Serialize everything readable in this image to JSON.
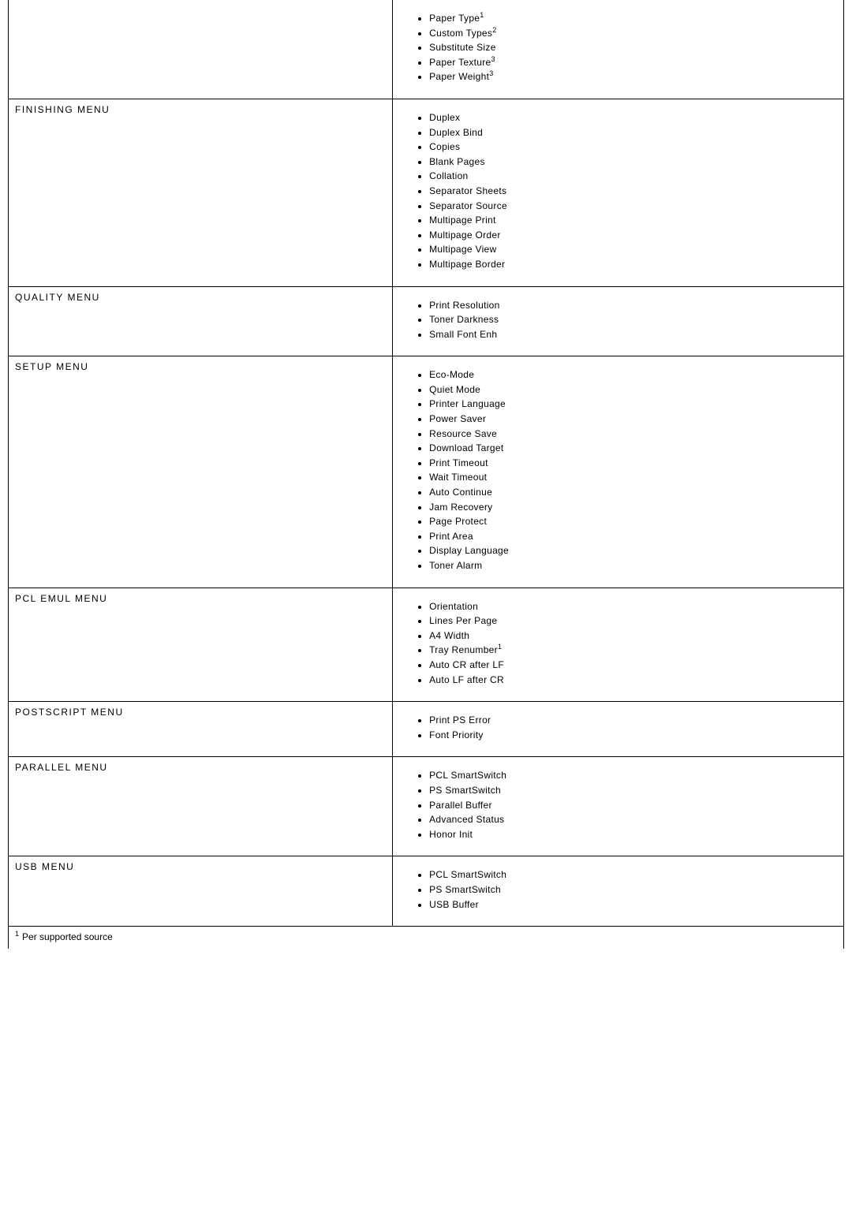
{
  "menus": [
    {
      "name": "",
      "first_row": true,
      "items": [
        {
          "text": "Paper Type",
          "sup": "1"
        },
        {
          "text": "Custom Types",
          "sup": "2"
        },
        {
          "text": "Substitute Size",
          "sup": null
        },
        {
          "text": "Paper Texture",
          "sup": "3"
        },
        {
          "text": "Paper Weight",
          "sup": "3"
        }
      ]
    },
    {
      "name": "FINISHING MENU",
      "items": [
        {
          "text": "Duplex",
          "sup": null
        },
        {
          "text": "Duplex Bind",
          "sup": null
        },
        {
          "text": "Copies",
          "sup": null
        },
        {
          "text": "Blank Pages",
          "sup": null
        },
        {
          "text": "Collation",
          "sup": null
        },
        {
          "text": "Separator Sheets",
          "sup": null
        },
        {
          "text": "Separator Source",
          "sup": null
        },
        {
          "text": "Multipage Print",
          "sup": null
        },
        {
          "text": "Multipage Order",
          "sup": null
        },
        {
          "text": "Multipage View",
          "sup": null
        },
        {
          "text": "Multipage Border",
          "sup": null
        }
      ]
    },
    {
      "name": "QUALITY MENU",
      "items": [
        {
          "text": "Print Resolution",
          "sup": null
        },
        {
          "text": "Toner Darkness",
          "sup": null
        },
        {
          "text": "Small Font Enh",
          "sup": null
        }
      ]
    },
    {
      "name": "SETUP MENU",
      "items": [
        {
          "text": "Eco-Mode",
          "sup": null
        },
        {
          "text": "Quiet Mode",
          "sup": null
        },
        {
          "text": "Printer Language",
          "sup": null
        },
        {
          "text": "Power Saver",
          "sup": null
        },
        {
          "text": "Resource Save",
          "sup": null
        },
        {
          "text": "Download Target",
          "sup": null
        },
        {
          "text": "Print Timeout",
          "sup": null
        },
        {
          "text": "Wait Timeout",
          "sup": null
        },
        {
          "text": "Auto Continue",
          "sup": null
        },
        {
          "text": "Jam Recovery",
          "sup": null
        },
        {
          "text": "Page Protect",
          "sup": null
        },
        {
          "text": "Print Area",
          "sup": null
        },
        {
          "text": "Display Language",
          "sup": null
        },
        {
          "text": "Toner Alarm",
          "sup": null
        }
      ]
    },
    {
      "name": "PCL EMUL MENU",
      "items": [
        {
          "text": "Orientation",
          "sup": null
        },
        {
          "text": "Lines Per Page",
          "sup": null
        },
        {
          "text": "A4 Width",
          "sup": null
        },
        {
          "text": "Tray Renumber",
          "sup": "1"
        },
        {
          "text": "Auto CR after LF",
          "sup": null
        },
        {
          "text": "Auto LF after CR",
          "sup": null
        }
      ]
    },
    {
      "name": "POSTSCRIPT MENU",
      "items": [
        {
          "text": "Print PS Error",
          "sup": null
        },
        {
          "text": "Font Priority",
          "sup": null
        }
      ]
    },
    {
      "name": "PARALLEL MENU",
      "items": [
        {
          "text": "PCL SmartSwitch",
          "sup": null
        },
        {
          "text": "PS SmartSwitch",
          "sup": null
        },
        {
          "text": "Parallel Buffer",
          "sup": null
        },
        {
          "text": "Advanced Status",
          "sup": null
        },
        {
          "text": "Honor Init",
          "sup": null
        }
      ]
    },
    {
      "name": "USB MENU",
      "items": [
        {
          "text": "PCL SmartSwitch",
          "sup": null
        },
        {
          "text": "PS SmartSwitch",
          "sup": null
        },
        {
          "text": "USB Buffer",
          "sup": null
        }
      ]
    }
  ],
  "footnote": {
    "sup": "1",
    "text": "Per supported source"
  }
}
